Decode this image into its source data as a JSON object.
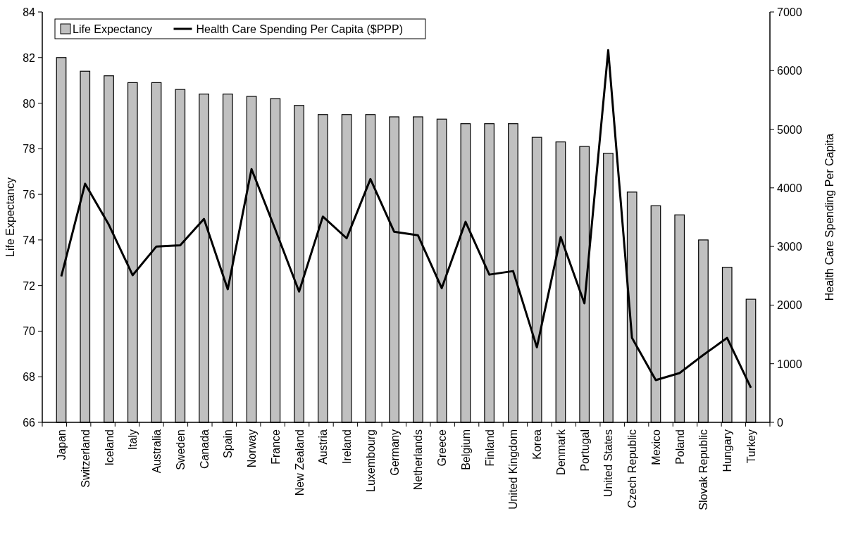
{
  "chart_data": {
    "type": "bar",
    "categories": [
      "Japan",
      "Switzerland",
      "Iceland",
      "Italy",
      "Australia",
      "Sweden",
      "Canada",
      "Spain",
      "Norway",
      "France",
      "New Zealand",
      "Austria",
      "Ireland",
      "Luxembourg",
      "Germany",
      "Netherlands",
      "Greece",
      "Belgium",
      "Finland",
      "United Kingdom",
      "Korea",
      "Denmark",
      "Portugal",
      "United States",
      "Czech Republic",
      "Mexico",
      "Poland",
      "Slovak Republic",
      "Hungary",
      "Turkey"
    ],
    "series": [
      {
        "name": "Life Expectancy",
        "color": "#c0c0c0",
        "values": [
          82.0,
          81.4,
          81.2,
          80.9,
          80.9,
          80.6,
          80.4,
          80.4,
          80.3,
          80.2,
          79.9,
          79.5,
          79.5,
          79.5,
          79.4,
          79.4,
          79.3,
          79.1,
          79.1,
          79.1,
          78.5,
          78.3,
          78.1,
          77.8,
          76.1,
          75.5,
          75.1,
          74.0,
          72.8,
          71.4
        ]
      },
      {
        "name": "Health Care Spending Per Capita ($PPP)",
        "type": "line",
        "axis": "y2",
        "color": "#000000",
        "values": [
          2490,
          4070,
          3370,
          2510,
          3000,
          3020,
          3470,
          2270,
          4320,
          3290,
          2230,
          3510,
          3140,
          4150,
          3250,
          3190,
          2290,
          3420,
          2520,
          2580,
          1280,
          3160,
          2030,
          6350,
          1440,
          720,
          840,
          1150,
          1440,
          590
        ]
      }
    ],
    "ylabel": "Life Expectancy",
    "y2label": "Health Care Spending Per Capita",
    "ylim": [
      66,
      84
    ],
    "yticks": [
      66,
      68,
      70,
      72,
      74,
      76,
      78,
      80,
      82,
      84
    ],
    "y2lim": [
      0,
      7000
    ],
    "y2ticks": [
      0,
      1000,
      2000,
      3000,
      4000,
      5000,
      6000,
      7000
    ],
    "legend": "top left",
    "line_style": "solid"
  }
}
